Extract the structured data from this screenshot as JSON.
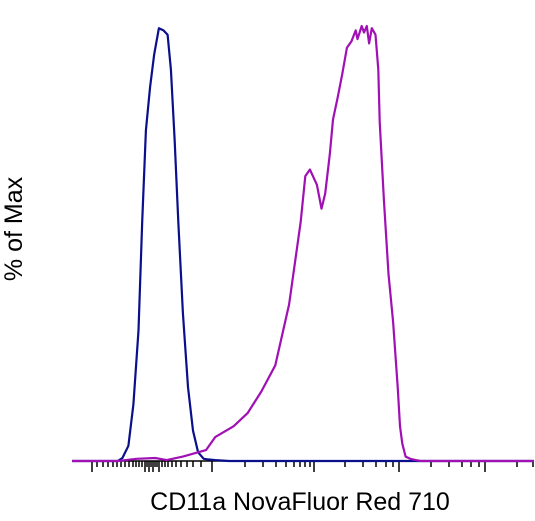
{
  "chart_data": {
    "type": "line",
    "title": "",
    "xlabel": "CD11a NovaFluor Red 710",
    "ylabel": "% of Max",
    "x_scale": "biexponential",
    "x_tick_labels": [],
    "y_tick_labels": [],
    "xlim": [
      0,
      100
    ],
    "ylim": [
      0,
      100
    ],
    "grid": false,
    "legend": "none",
    "series": [
      {
        "color": "#0a0f8c",
        "x": [
          0,
          9.9,
          10.9,
          12.2,
          13.3,
          14.4,
          15.2,
          16.0,
          16.9,
          17.8,
          18.8,
          19.8,
          20.7,
          21.4,
          22.2,
          23.0,
          24.0,
          25.1,
          26.2,
          27.3,
          28.5,
          29.3,
          31.0,
          34.0,
          100
        ],
        "y": [
          0,
          0,
          0.7,
          3.5,
          13.0,
          30.0,
          55.0,
          76.0,
          86.0,
          93.5,
          99.5,
          99.0,
          98.0,
          90.0,
          74.0,
          55.0,
          34.0,
          17.0,
          7.0,
          2.0,
          0.5,
          0.4,
          0.2,
          0,
          0
        ]
      },
      {
        "color": "#a010b4",
        "x": [
          0,
          10.0,
          14.0,
          18.0,
          20.5,
          24.0,
          29.0,
          31.0,
          35.0,
          38.0,
          41.0,
          44.0,
          47.0,
          49.5,
          50.5,
          51.5,
          53.0,
          54.0,
          54.8,
          55.8,
          56.5,
          57.5,
          58.5,
          59.5,
          60.5,
          61.4,
          61.8,
          62.7,
          63.2,
          63.8,
          64.3,
          64.9,
          65.7,
          66.3,
          66.6,
          67.5,
          68.5,
          69.5,
          70.5,
          71.0,
          71.5,
          72.2,
          73.2,
          74.4,
          75.5,
          100
        ],
        "y": [
          0,
          0,
          0.5,
          0.7,
          0.2,
          1.0,
          2.5,
          5.5,
          8.0,
          11.0,
          16.0,
          22.0,
          36.0,
          55.0,
          65.5,
          67.0,
          63.5,
          58.0,
          61.5,
          70.5,
          78.5,
          83.5,
          89.0,
          95.0,
          96.5,
          99.0,
          97.0,
          100.0,
          98.5,
          100.0,
          96.0,
          99.5,
          98.0,
          90.0,
          78.0,
          60.0,
          43.0,
          32.0,
          17.0,
          8.0,
          4.0,
          1.0,
          0.5,
          0.2,
          0,
          0
        ]
      }
    ]
  }
}
